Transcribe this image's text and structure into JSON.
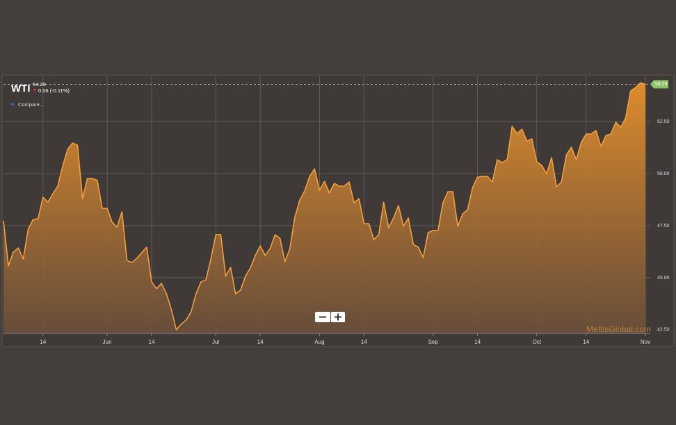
{
  "chart_data": {
    "type": "area",
    "title": "WTI",
    "change": "0.06 (-0.11%)",
    "compare_label": "Compare...",
    "watermark": "MettisGlobal.com",
    "color": "#f2a03d",
    "grid": true,
    "ylim": [
      42.33,
      54.67
    ],
    "yticks": [
      {
        "value": 42.5,
        "label": "42.50"
      },
      {
        "value": 45,
        "label": "45.00"
      },
      {
        "value": 47.5,
        "label": "47.50"
      },
      {
        "value": 50,
        "label": "50.00"
      },
      {
        "value": 52.5,
        "label": "52.50"
      }
    ],
    "categories": [
      null,
      null,
      null,
      null,
      null,
      null,
      null,
      null,
      "14",
      null,
      null,
      null,
      null,
      null,
      null,
      null,
      null,
      null,
      null,
      null,
      null,
      "Jun",
      null,
      null,
      null,
      null,
      null,
      null,
      null,
      null,
      "14",
      null,
      null,
      null,
      null,
      null,
      null,
      null,
      null,
      null,
      null,
      null,
      null,
      "Jul",
      null,
      null,
      null,
      null,
      null,
      null,
      null,
      null,
      "14",
      null,
      null,
      null,
      null,
      null,
      null,
      null,
      null,
      null,
      null,
      null,
      "Aug",
      null,
      null,
      null,
      null,
      null,
      null,
      null,
      null,
      "14",
      null,
      null,
      null,
      null,
      null,
      null,
      null,
      null,
      null,
      null,
      null,
      null,
      null,
      "Sep",
      null,
      null,
      null,
      null,
      null,
      null,
      null,
      null,
      "14",
      null,
      null,
      null,
      null,
      null,
      null,
      null,
      null,
      null,
      null,
      null,
      "Oct",
      null,
      null,
      null,
      null,
      null,
      null,
      null,
      null,
      null,
      "14",
      null,
      null,
      null,
      null,
      null,
      null,
      null,
      null,
      null,
      null,
      null,
      "Nov"
    ],
    "values": [
      47.73,
      45.57,
      46.23,
      46.43,
      45.9,
      47.33,
      47.8,
      47.83,
      48.87,
      48.63,
      49.03,
      49.4,
      50.37,
      51.17,
      51.47,
      51.37,
      48.8,
      49.77,
      49.77,
      49.67,
      48.33,
      48.33,
      47.67,
      47.43,
      48.17,
      45.83,
      45.73,
      45.93,
      46.2,
      46.47,
      44.8,
      44.47,
      44.73,
      44.23,
      43.47,
      42.5,
      42.77,
      42.97,
      43.37,
      44.23,
      44.8,
      44.9,
      45.9,
      47.07,
      47.07,
      45.07,
      45.5,
      44.23,
      44.4,
      45.07,
      45.47,
      46.07,
      46.53,
      46.07,
      46.4,
      47.07,
      46.9,
      45.77,
      46.4,
      47.9,
      48.73,
      49.17,
      49.87,
      50.23,
      49.2,
      49.63,
      49.07,
      49.53,
      49.4,
      49.4,
      49.6,
      48.6,
      48.8,
      47.6,
      47.6,
      46.83,
      47.07,
      48.63,
      47.4,
      47.87,
      48.47,
      47.47,
      47.87,
      46.6,
      46.47,
      45.97,
      47.17,
      47.27,
      47.27,
      48.6,
      49.13,
      49.13,
      47.47,
      48.07,
      48.27,
      49.33,
      49.83,
      49.87,
      49.87,
      49.6,
      50.67,
      50.53,
      50.67,
      52.27,
      51.93,
      52.13,
      51.57,
      51.67,
      50.57,
      50.4,
      50.0,
      50.77,
      49.37,
      49.6,
      50.9,
      51.27,
      50.67,
      51.5,
      51.9,
      51.9,
      52.07,
      51.3,
      51.83,
      51.9,
      52.47,
      52.23,
      52.67,
      53.97,
      54.13,
      54.37,
      54.29
    ]
  }
}
